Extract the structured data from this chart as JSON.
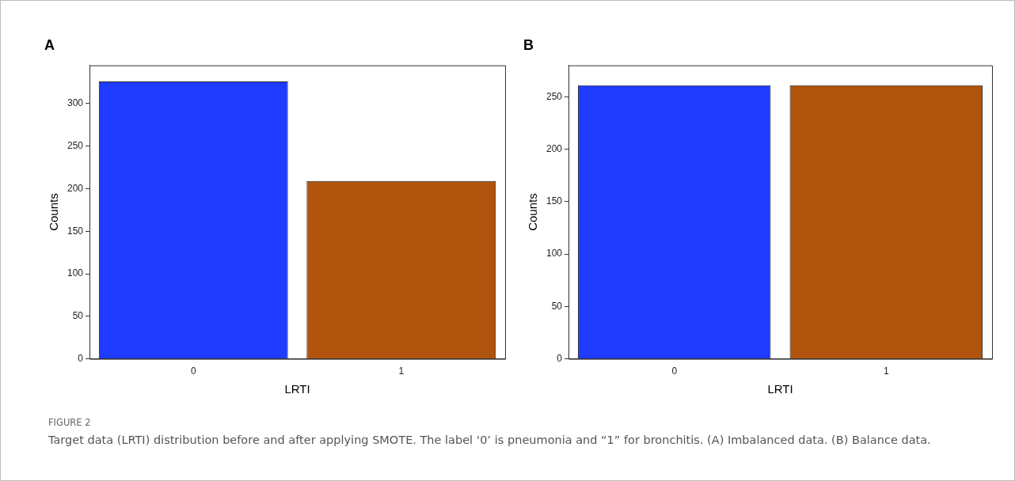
{
  "chart_data": [
    {
      "type": "bar",
      "title": "A",
      "xlabel": "LRTI",
      "ylabel": "Counts",
      "categories": [
        "0",
        "1"
      ],
      "values": [
        326,
        209
      ],
      "colors": [
        "#1f3bff",
        "#b0530c"
      ],
      "ylim": [
        0,
        345
      ],
      "yticks": [
        0,
        50,
        100,
        150,
        200,
        250,
        300
      ],
      "annotations": [
        "FIGURE 2",
        "Target data (LRTI) distribution before and after applying SMOTE. The label ‘0’ is pneumonia and “1” for bronchitis. (A) Imbalanced data. (B) Balance data."
      ]
    },
    {
      "type": "bar",
      "title": "B",
      "xlabel": "LRTI",
      "ylabel": "Counts",
      "categories": [
        "0",
        "1"
      ],
      "values": [
        261,
        261
      ],
      "colors": [
        "#1f3bff",
        "#b0530c"
      ],
      "ylim": [
        0,
        280
      ],
      "yticks": [
        0,
        50,
        100,
        150,
        200,
        250
      ]
    }
  ]
}
